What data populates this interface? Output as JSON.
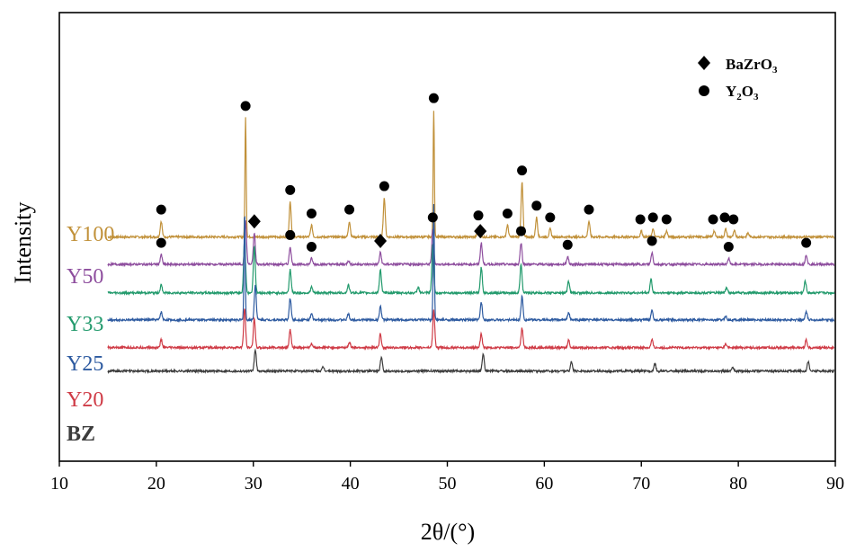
{
  "chart_data": {
    "type": "line",
    "title": "",
    "xlabel": "2θ/(°)",
    "ylabel": "Intensity",
    "xlim": [
      10,
      90
    ],
    "x_ticks": [
      10,
      20,
      30,
      40,
      50,
      60,
      70,
      80,
      90
    ],
    "grid": false,
    "y_tick_labels": false,
    "legend": {
      "placement": "top-right",
      "entries": [
        {
          "marker": "diamond",
          "label_main": "BaZrO",
          "label_sub": "3"
        },
        {
          "marker": "circle",
          "label_main": "Y",
          "label_sub1": "2",
          "label_mid": "O",
          "label_sub2": "3"
        }
      ]
    },
    "series": [
      {
        "name": "Y100",
        "color": "#c1913a",
        "baseline": 0.7,
        "peaks": [
          [
            20.5,
            0.4
          ],
          [
            29.2,
            3.05
          ],
          [
            33.8,
            0.9
          ],
          [
            36.0,
            0.3
          ],
          [
            39.9,
            0.4
          ],
          [
            43.5,
            1.0
          ],
          [
            48.6,
            3.25
          ],
          [
            53.2,
            0.25
          ],
          [
            56.2,
            0.3
          ],
          [
            57.7,
            1.4
          ],
          [
            59.2,
            0.5
          ],
          [
            60.6,
            0.2
          ],
          [
            64.6,
            0.4
          ],
          [
            70.0,
            0.15
          ],
          [
            71.2,
            0.2
          ],
          [
            72.6,
            0.15
          ],
          [
            77.5,
            0.15
          ],
          [
            78.7,
            0.2
          ],
          [
            79.6,
            0.15
          ],
          [
            81.0,
            0.1
          ]
        ]
      },
      {
        "name": "Y50",
        "color": "#8e4e9e",
        "baseline": 0.0,
        "peaks": [
          [
            20.5,
            0.25
          ],
          [
            29.2,
            1.1
          ],
          [
            30.1,
            0.8
          ],
          [
            33.8,
            0.45
          ],
          [
            36.0,
            0.15
          ],
          [
            39.8,
            0.1
          ],
          [
            43.1,
            0.3
          ],
          [
            48.5,
            0.9
          ],
          [
            53.5,
            0.55
          ],
          [
            57.6,
            0.55
          ],
          [
            62.4,
            0.2
          ],
          [
            71.1,
            0.3
          ],
          [
            79.0,
            0.15
          ],
          [
            87.0,
            0.25
          ]
        ]
      },
      {
        "name": "Y33",
        "color": "#229a6c",
        "baseline": -0.73,
        "peaks": [
          [
            20.5,
            0.2
          ],
          [
            29.1,
            1.4
          ],
          [
            30.1,
            1.2
          ],
          [
            33.8,
            0.6
          ],
          [
            36.0,
            0.15
          ],
          [
            39.8,
            0.2
          ],
          [
            43.1,
            0.6
          ],
          [
            47.0,
            0.15
          ],
          [
            48.5,
            1.25
          ],
          [
            53.5,
            0.65
          ],
          [
            57.6,
            0.75
          ],
          [
            62.5,
            0.3
          ],
          [
            71.0,
            0.35
          ],
          [
            78.8,
            0.15
          ],
          [
            86.9,
            0.3
          ]
        ]
      },
      {
        "name": "Y25",
        "color": "#2d5aa0",
        "baseline": -1.42,
        "peaks": [
          [
            20.5,
            0.2
          ],
          [
            29.1,
            2.75
          ],
          [
            30.2,
            0.9
          ],
          [
            33.8,
            0.55
          ],
          [
            36.0,
            0.15
          ],
          [
            39.8,
            0.15
          ],
          [
            43.1,
            0.35
          ],
          [
            48.6,
            2.95
          ],
          [
            53.5,
            0.45
          ],
          [
            57.7,
            0.6
          ],
          [
            62.5,
            0.2
          ],
          [
            71.1,
            0.25
          ],
          [
            78.7,
            0.1
          ],
          [
            87.0,
            0.2
          ]
        ]
      },
      {
        "name": "Y20",
        "color": "#cf3b46",
        "baseline": -2.13,
        "peaks": [
          [
            20.5,
            0.2
          ],
          [
            29.1,
            1.0
          ],
          [
            30.1,
            0.75
          ],
          [
            33.8,
            0.45
          ],
          [
            36.0,
            0.1
          ],
          [
            39.9,
            0.15
          ],
          [
            43.1,
            0.35
          ],
          [
            48.6,
            0.95
          ],
          [
            53.5,
            0.35
          ],
          [
            57.7,
            0.5
          ],
          [
            62.5,
            0.2
          ],
          [
            71.1,
            0.2
          ],
          [
            78.7,
            0.1
          ],
          [
            87.0,
            0.2
          ]
        ]
      },
      {
        "name": "BZ",
        "color": "#3c3c3c",
        "baseline": -2.73,
        "peaks": [
          [
            30.2,
            0.55
          ],
          [
            37.2,
            0.1
          ],
          [
            43.2,
            0.35
          ],
          [
            53.7,
            0.45
          ],
          [
            62.8,
            0.25
          ],
          [
            71.4,
            0.2
          ],
          [
            79.4,
            0.1
          ],
          [
            87.2,
            0.25
          ]
        ]
      }
    ],
    "annotations": [
      {
        "series": "Y100",
        "marker": "circle",
        "x": [
          20.5,
          29.2,
          33.8,
          36.0,
          39.9,
          43.5,
          48.6,
          53.2,
          56.2,
          57.7,
          59.2,
          60.6,
          64.6,
          69.9,
          71.2,
          72.6,
          77.4,
          78.6,
          79.5
        ]
      },
      {
        "series": "Y50",
        "marker": "circle",
        "x": [
          20.5,
          33.8,
          36.0,
          48.5,
          57.6,
          62.4,
          71.1,
          79.0,
          87.0
        ]
      },
      {
        "series": "Y50",
        "marker": "diamond",
        "x": [
          30.1,
          43.1,
          53.4
        ]
      }
    ]
  }
}
